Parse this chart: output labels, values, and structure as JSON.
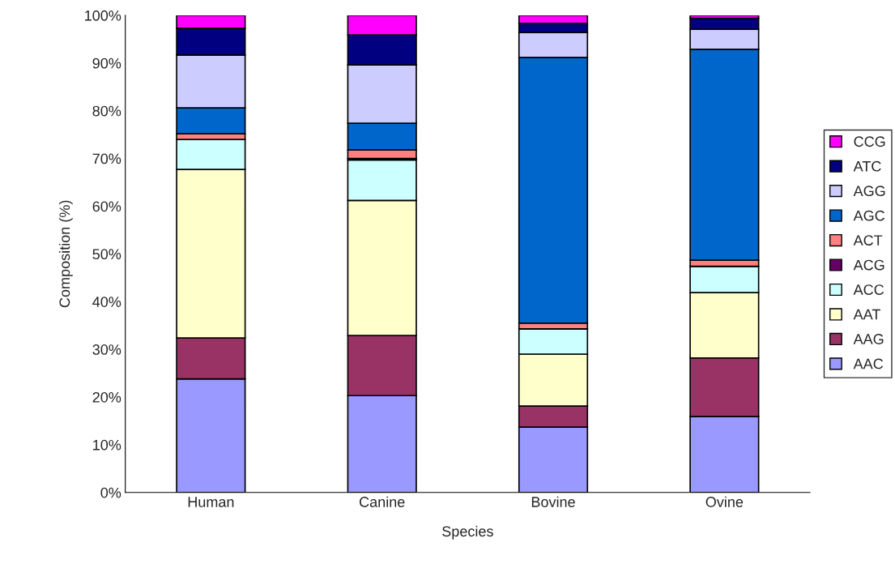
{
  "chart_data": {
    "type": "bar",
    "stacked": true,
    "xlabel": "Species",
    "ylabel": "Composition (%)",
    "categories": [
      "Human",
      "Canine",
      "Bovine",
      "Ovine"
    ],
    "series": [
      {
        "name": "AAC",
        "color": "#9999ff",
        "values": [
          23.8,
          20.3,
          13.7,
          15.9
        ]
      },
      {
        "name": "AAG",
        "color": "#993366",
        "values": [
          8.6,
          12.6,
          4.4,
          12.3
        ]
      },
      {
        "name": "AAT",
        "color": "#ffffcc",
        "values": [
          35.3,
          28.3,
          10.9,
          13.7
        ]
      },
      {
        "name": "ACC",
        "color": "#ccffff",
        "values": [
          6.3,
          8.5,
          5.3,
          5.5
        ]
      },
      {
        "name": "ACG",
        "color": "#660066",
        "values": [
          0,
          0.3,
          0,
          0
        ]
      },
      {
        "name": "ACT",
        "color": "#ff8080",
        "values": [
          1.2,
          1.8,
          1.2,
          1.3
        ]
      },
      {
        "name": "AGC",
        "color": "#0066cc",
        "values": [
          5.4,
          5.6,
          55.7,
          44.2
        ]
      },
      {
        "name": "AGG",
        "color": "#ccccff",
        "values": [
          11.1,
          12.2,
          5.2,
          4.2
        ]
      },
      {
        "name": "ATC",
        "color": "#000080",
        "values": [
          5.6,
          6.3,
          1.9,
          2.3
        ]
      },
      {
        "name": "CCG",
        "color": "#ff00ff",
        "values": [
          2.7,
          4.1,
          1.7,
          0.6
        ]
      }
    ],
    "ylim": [
      0,
      100
    ],
    "yticks": [
      {
        "value": 0,
        "label": "0%"
      },
      {
        "value": 10,
        "label": "10%"
      },
      {
        "value": 20,
        "label": "20%"
      },
      {
        "value": 30,
        "label": "30%"
      },
      {
        "value": 40,
        "label": "40%"
      },
      {
        "value": 50,
        "label": "50%"
      },
      {
        "value": 60,
        "label": "60%"
      },
      {
        "value": 70,
        "label": "70%"
      },
      {
        "value": 80,
        "label": "80%"
      },
      {
        "value": 90,
        "label": "90%"
      },
      {
        "value": 100,
        "label": "100%"
      }
    ],
    "grid": false,
    "legend": "right"
  }
}
